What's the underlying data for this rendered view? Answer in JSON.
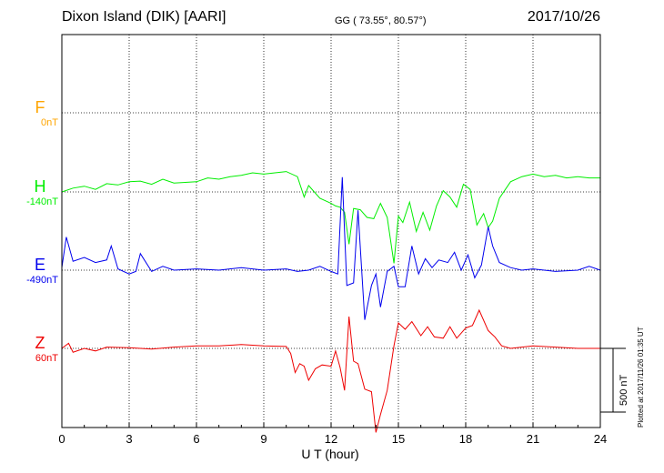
{
  "header": {
    "title": "Dixon Island (DIK)  [AARI]",
    "coordinates": "GG ( 73.55°,  80.57°)",
    "date": "2017/10/26"
  },
  "footer": {
    "plotted": "Plotted at 2017/11/26 01:35 UT",
    "scale_label": "500 nT"
  },
  "chart_data": {
    "type": "line",
    "xlabel": "U T (hour)",
    "xlim": [
      0,
      24
    ],
    "xticks": [
      0,
      3,
      6,
      9,
      12,
      15,
      18,
      21,
      24
    ],
    "grid": true,
    "scale_bar_nT": 500,
    "series": [
      {
        "name": "F",
        "baseline_label": "0nT",
        "baseline_nT": 0,
        "color": "#ffa500",
        "x": [],
        "values": []
      },
      {
        "name": "H",
        "baseline_label": "-140nT",
        "baseline_nT": -140,
        "color": "#00ee00",
        "x": [
          0,
          0.5,
          1,
          1.5,
          2,
          2.5,
          3,
          3.5,
          4,
          4.5,
          5,
          5.5,
          6,
          6.5,
          7,
          7.5,
          8,
          8.5,
          9,
          9.5,
          10,
          10.5,
          10.8,
          11,
          11.5,
          12,
          12.2,
          12.4,
          12.6,
          12.8,
          13,
          13.3,
          13.6,
          13.9,
          14.2,
          14.5,
          14.8,
          15,
          15.2,
          15.5,
          15.8,
          16.1,
          16.4,
          16.7,
          17,
          17.3,
          17.6,
          17.9,
          18.2,
          18.5,
          18.8,
          19,
          19.2,
          19.5,
          20,
          20.5,
          21,
          21.5,
          22,
          22.5,
          23,
          23.5,
          24
        ],
        "values": [
          -140,
          -110,
          -95,
          -120,
          -75,
          -85,
          -60,
          -55,
          -80,
          -40,
          -70,
          -65,
          -60,
          -30,
          -40,
          -20,
          -10,
          10,
          0,
          10,
          20,
          -20,
          -180,
          -90,
          -190,
          -230,
          -250,
          -260,
          -300,
          -550,
          -270,
          -280,
          -340,
          -350,
          -230,
          -340,
          -700,
          -330,
          -380,
          -220,
          -450,
          -300,
          -440,
          -250,
          -130,
          -180,
          -260,
          -80,
          -120,
          -400,
          -310,
          -420,
          -370,
          -190,
          -60,
          -20,
          0,
          -20,
          -10,
          -30,
          -20,
          -30,
          -30
        ]
      },
      {
        "name": "E",
        "baseline_label": "-490nT",
        "baseline_nT": -490,
        "color": "#0000ee",
        "x": [
          0,
          0.2,
          0.5,
          1,
          1.5,
          2,
          2.2,
          2.5,
          3,
          3.3,
          3.5,
          4,
          4.5,
          5,
          6,
          7,
          8,
          9,
          10,
          10.5,
          11,
          11.5,
          12,
          12.3,
          12.5,
          12.7,
          13,
          13.2,
          13.5,
          13.8,
          14,
          14.2,
          14.5,
          14.8,
          15,
          15.3,
          15.6,
          15.9,
          16.2,
          16.5,
          16.8,
          17.2,
          17.5,
          17.8,
          18.1,
          18.4,
          18.7,
          19,
          19.2,
          19.5,
          20,
          20.5,
          21,
          22,
          23,
          23.5,
          24
        ],
        "values": [
          -470,
          -230,
          -420,
          -390,
          -430,
          -410,
          -300,
          -480,
          -520,
          -500,
          -360,
          -500,
          -460,
          -490,
          -480,
          -490,
          -470,
          -490,
          -480,
          -500,
          -490,
          -460,
          -500,
          -520,
          240,
          -610,
          -590,
          -20,
          -880,
          -610,
          -520,
          -780,
          -500,
          -460,
          -620,
          -620,
          -300,
          -520,
          -400,
          -470,
          -410,
          -430,
          -350,
          -490,
          -370,
          -550,
          -450,
          -150,
          -300,
          -430,
          -470,
          -490,
          -480,
          -500,
          -490,
          -460,
          -490
        ]
      },
      {
        "name": "Z",
        "baseline_label": "60nT",
        "baseline_nT": 60,
        "color": "#ee0000",
        "x": [
          0,
          0.3,
          0.5,
          1,
          1.5,
          2,
          3,
          4,
          5,
          6,
          7,
          8,
          9,
          10,
          10.2,
          10.4,
          10.6,
          10.8,
          11,
          11.3,
          11.6,
          12,
          12.2,
          12.4,
          12.6,
          12.8,
          13,
          13.2,
          13.5,
          13.8,
          14,
          14.2,
          14.5,
          14.8,
          15,
          15.3,
          15.6,
          16,
          16.3,
          16.6,
          17,
          17.3,
          17.6,
          18,
          18.3,
          18.6,
          19,
          19.3,
          19.6,
          20,
          20.5,
          21,
          22,
          23,
          24
        ],
        "values": [
          60,
          100,
          30,
          60,
          40,
          70,
          65,
          55,
          70,
          80,
          80,
          90,
          80,
          75,
          20,
          -130,
          -60,
          -80,
          -190,
          -100,
          -70,
          -80,
          40,
          -90,
          -270,
          310,
          -40,
          -60,
          -260,
          -280,
          -600,
          -460,
          -270,
          80,
          260,
          210,
          270,
          160,
          230,
          150,
          140,
          230,
          140,
          220,
          240,
          360,
          200,
          150,
          80,
          60,
          70,
          80,
          70,
          60,
          60
        ]
      }
    ]
  }
}
